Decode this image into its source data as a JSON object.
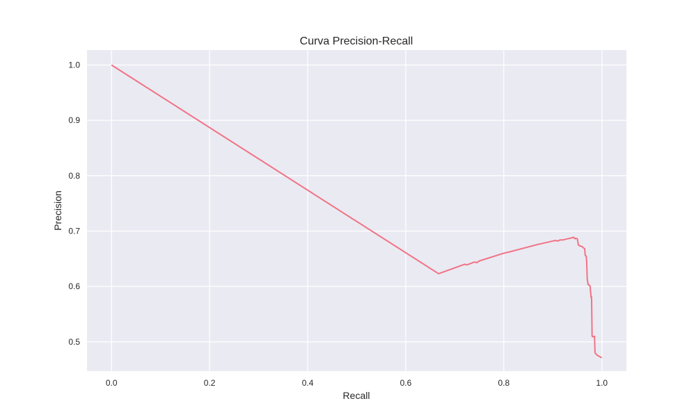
{
  "chart_data": {
    "type": "line",
    "title": "Curva Precision-Recall",
    "xlabel": "Recall",
    "ylabel": "Precision",
    "xlim": [
      -0.05,
      1.05
    ],
    "ylim": [
      0.447,
      1.027
    ],
    "xticks": [
      0.0,
      0.2,
      0.4,
      0.6,
      0.8,
      1.0
    ],
    "xtick_labels": [
      "0.0",
      "0.2",
      "0.4",
      "0.6",
      "0.8",
      "1.0"
    ],
    "yticks": [
      0.5,
      0.6,
      0.7,
      0.8,
      0.9,
      1.0
    ],
    "ytick_labels": [
      "0.5",
      "0.6",
      "0.7",
      "0.8",
      "0.9",
      "1.0"
    ],
    "grid": true,
    "legend": "none",
    "colors": {
      "line": "#f07385",
      "plot_background": "#eaeaf2",
      "grid": "#ffffff"
    },
    "series": [
      {
        "x": [
          0.0,
          0.667,
          0.72,
          0.725,
          0.74,
          0.745,
          0.75,
          0.8,
          0.81,
          0.87,
          0.875,
          0.9,
          0.905,
          0.91,
          0.915,
          0.92,
          0.925,
          0.94,
          0.942,
          0.945,
          0.946,
          0.95,
          0.952,
          0.955,
          0.956,
          0.96,
          0.962,
          0.965,
          0.966,
          0.968,
          0.969,
          0.97,
          0.972,
          0.975,
          0.976,
          0.978,
          0.979,
          0.98,
          0.981,
          0.985,
          0.986,
          0.99,
          1.0
        ],
        "y": [
          1.0,
          0.623,
          0.64,
          0.639,
          0.644,
          0.643,
          0.646,
          0.66,
          0.662,
          0.676,
          0.677,
          0.682,
          0.683,
          0.682,
          0.684,
          0.684,
          0.685,
          0.688,
          0.689,
          0.686,
          0.687,
          0.686,
          0.675,
          0.673,
          0.673,
          0.672,
          0.67,
          0.668,
          0.656,
          0.655,
          0.645,
          0.615,
          0.603,
          0.602,
          0.6,
          0.58,
          0.581,
          0.511,
          0.509,
          0.51,
          0.48,
          0.476,
          0.471
        ]
      }
    ]
  }
}
